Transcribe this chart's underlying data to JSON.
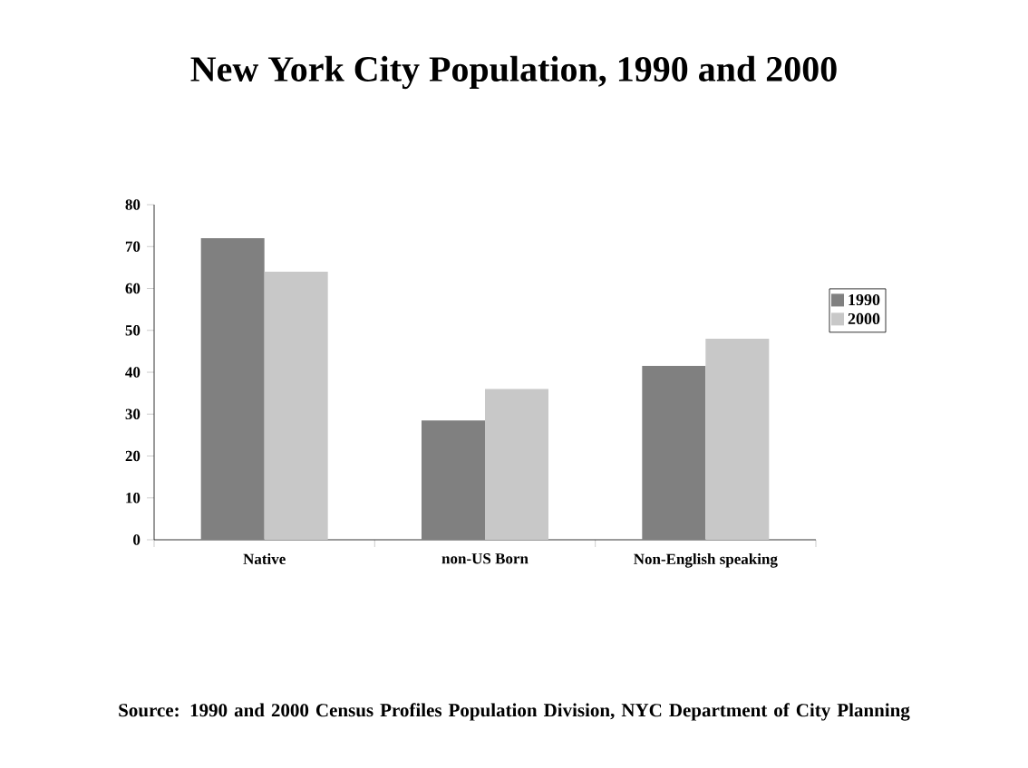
{
  "chart_data": {
    "type": "bar",
    "title": "New York City Population, 1990 and 2000",
    "categories": [
      "Native",
      "non-US Born",
      "Non-English speaking"
    ],
    "series": [
      {
        "name": "1990",
        "color": "#808080",
        "values": [
          72,
          28.5,
          41.5
        ]
      },
      {
        "name": "2000",
        "color": "#c8c8c8",
        "values": [
          64,
          36,
          48
        ]
      }
    ],
    "ylim": [
      0,
      80
    ],
    "yticks": [
      0,
      10,
      20,
      30,
      40,
      50,
      60,
      70,
      80
    ],
    "grid": false,
    "legend": "right",
    "annotations": [
      "Source:  1990 and 2000 Census Profiles Population Division, NYC Department of City Planning"
    ]
  }
}
